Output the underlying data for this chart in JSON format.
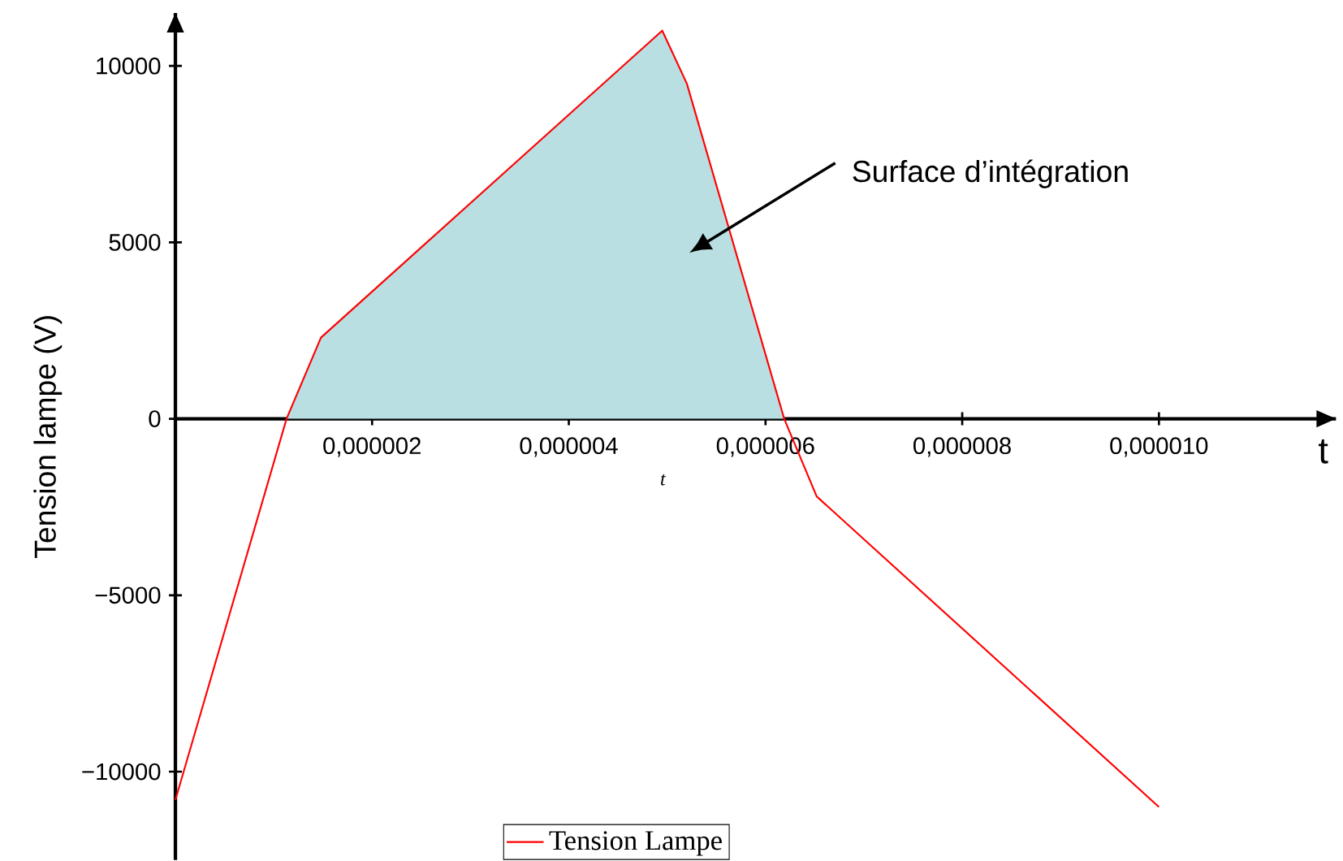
{
  "chart_data": {
    "type": "line",
    "ylabel": "Tension lampe (V)",
    "xlabel": "t",
    "annotations": [
      "Surface d’intégration",
      "t"
    ],
    "xlim": [
      0,
      1.18e-05
    ],
    "ylim": [
      -12500,
      11500
    ],
    "xticks": [
      {
        "value": 2e-06,
        "label": "0,000002"
      },
      {
        "value": 4e-06,
        "label": "0,000004"
      },
      {
        "value": 6e-06,
        "label": "0,000006"
      },
      {
        "value": 8e-06,
        "label": "0,000008"
      },
      {
        "value": 1e-05,
        "label": "0,000010"
      }
    ],
    "yticks": [
      {
        "value": -10000,
        "label": "−10000"
      },
      {
        "value": -5000,
        "label": "−5000"
      },
      0,
      5000,
      10000
    ],
    "legend": "bottom",
    "grid": false,
    "series": [
      {
        "type": "area",
        "color": "#b9dfe3",
        "x": [
          1.13e-06,
          1.48e-06,
          4.95e-06,
          5.2e-06,
          6.19e-06
        ],
        "values": [
          0,
          2300,
          11000,
          9500,
          0
        ]
      },
      {
        "name": "Tension Lampe",
        "color": "#ff0000",
        "x": [
          0,
          1.13e-06,
          1.48e-06,
          4.95e-06,
          5.2e-06,
          6.19e-06,
          6.52e-06,
          1e-05
        ],
        "values": [
          -10800,
          0,
          2300,
          11000,
          9500,
          0,
          -2200,
          -11000
        ]
      }
    ]
  }
}
